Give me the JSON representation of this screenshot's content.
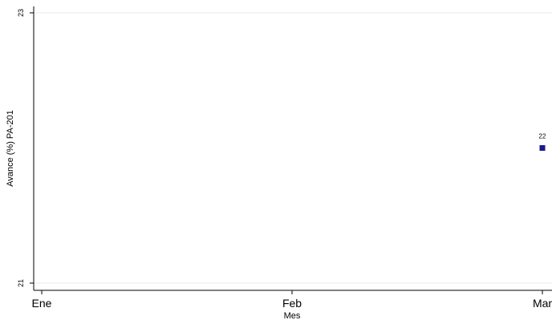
{
  "chart_data": {
    "type": "scatter",
    "title": "",
    "xlabel": "Mes",
    "ylabel": "Avance (%) PA-201",
    "categories": [
      "Ene",
      "Feb",
      "Mar"
    ],
    "series": [
      {
        "points": [
          {
            "x": "Mar",
            "y": 22,
            "label": "22"
          }
        ]
      }
    ],
    "ylim": [
      21,
      23
    ],
    "yticks": [
      21,
      23
    ],
    "grid": true,
    "legend": "none",
    "marker_color": "#1a1a8c"
  }
}
